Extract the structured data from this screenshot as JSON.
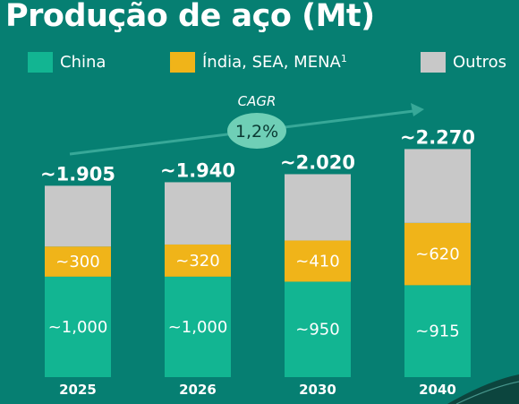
{
  "title": "Produção de aço (Mt)",
  "legend": [
    {
      "label": "China",
      "color": "#12b592"
    },
    {
      "label": "Índia, SEA, MENA",
      "sup": "1",
      "color": "#f0b419"
    },
    {
      "label": "Outros",
      "color": "#c8c8c8"
    }
  ],
  "cagr": {
    "label": "CAGR",
    "value": "1,2%"
  },
  "chart_data": {
    "type": "bar",
    "stacked": true,
    "title": "Produção de aço (Mt)",
    "categories": [
      "2025",
      "2026",
      "2030",
      "2040"
    ],
    "totals": [
      1905,
      1940,
      2020,
      2270
    ],
    "total_labels": [
      "~1.905",
      "~1.940",
      "~2.020",
      "~2.270"
    ],
    "series": [
      {
        "name": "China",
        "color": "#12b592",
        "values": [
          1000,
          1000,
          950,
          915
        ],
        "labels": [
          "~1,000",
          "~1,000",
          "~950",
          "~915"
        ]
      },
      {
        "name": "Índia, SEA, MENA",
        "color": "#f0b419",
        "values": [
          300,
          320,
          410,
          620
        ],
        "labels": [
          "~300",
          "~320",
          "~410",
          "~620"
        ]
      },
      {
        "name": "Outros",
        "color": "#c8c8c8",
        "values": [
          605,
          620,
          660,
          735
        ],
        "labels": [
          "",
          "",
          "",
          ""
        ]
      }
    ],
    "grid": false,
    "legend_position": "top"
  }
}
